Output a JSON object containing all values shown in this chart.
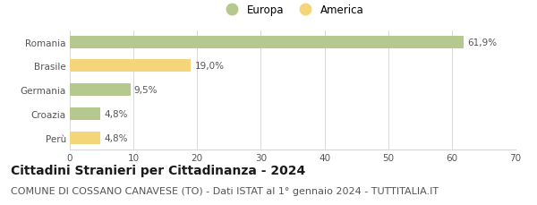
{
  "categories": [
    "Perù",
    "Croazia",
    "Germania",
    "Brasile",
    "Romania"
  ],
  "values": [
    4.8,
    4.8,
    9.5,
    19.0,
    61.9
  ],
  "labels": [
    "4,8%",
    "4,8%",
    "9,5%",
    "19,0%",
    "61,9%"
  ],
  "colors": [
    "#f5d57a",
    "#b5c98e",
    "#b5c98e",
    "#f5d57a",
    "#b5c98e"
  ],
  "legend": [
    {
      "label": "Europa",
      "color": "#b5c98e"
    },
    {
      "label": "America",
      "color": "#f5d57a"
    }
  ],
  "xlim": [
    0,
    70
  ],
  "xticks": [
    0,
    10,
    20,
    30,
    40,
    50,
    60,
    70
  ],
  "title": "Cittadini Stranieri per Cittadinanza - 2024",
  "subtitle": "COMUNE DI COSSANO CANAVESE (TO) - Dati ISTAT al 1° gennaio 2024 - TUTTITALIA.IT",
  "title_fontsize": 10,
  "subtitle_fontsize": 8,
  "label_fontsize": 7.5,
  "tick_fontsize": 7.5,
  "legend_fontsize": 8.5,
  "bar_height": 0.52,
  "background_color": "#ffffff",
  "grid_color": "#d8d8d8",
  "text_color": "#555555",
  "title_color": "#1a1a1a"
}
